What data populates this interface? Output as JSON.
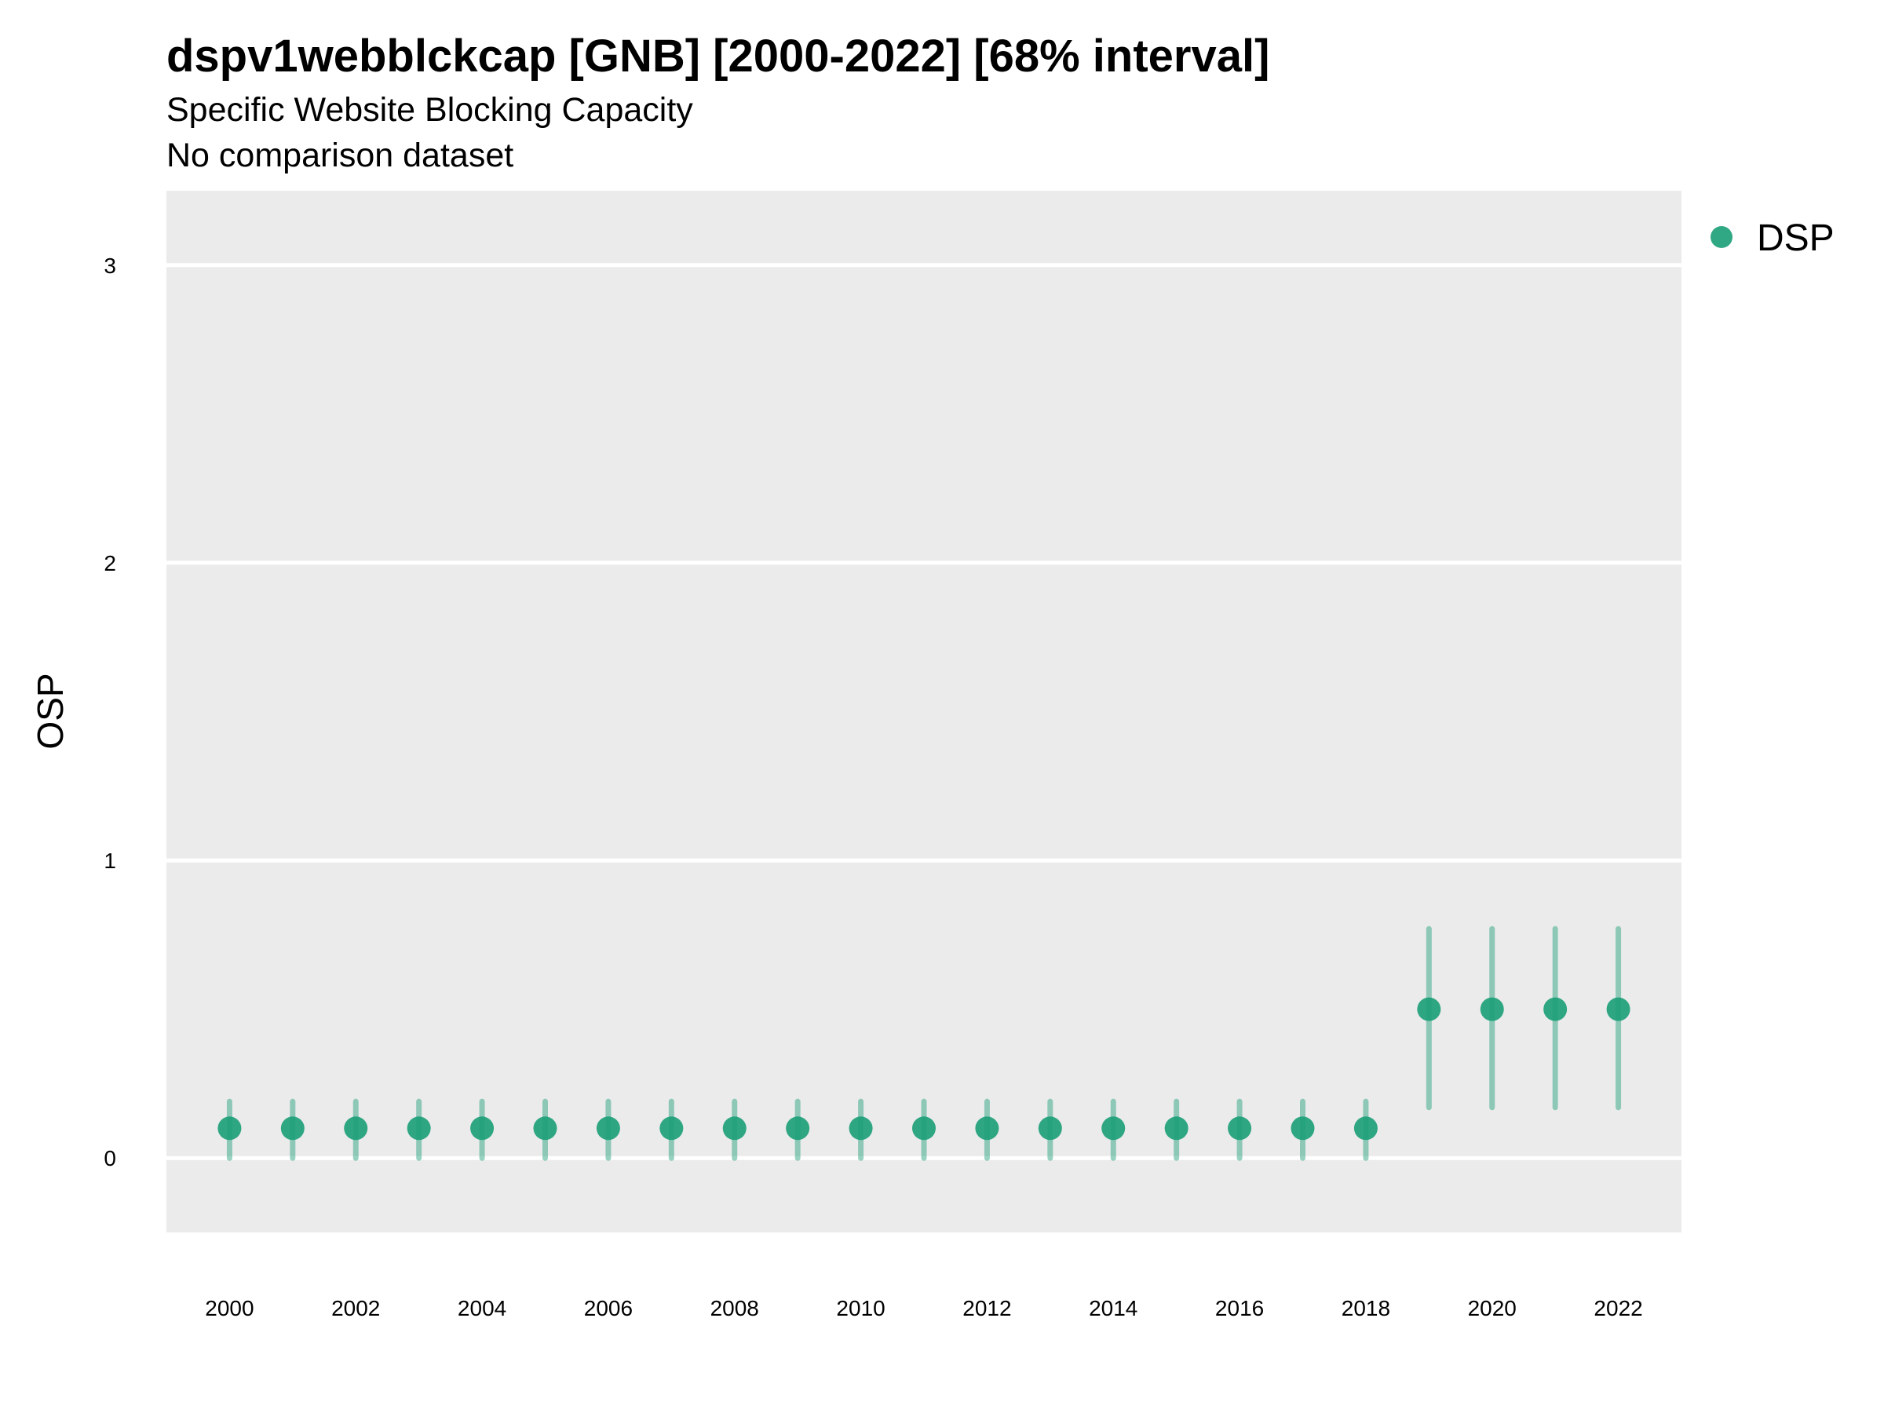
{
  "chart_data": {
    "type": "scatter",
    "title": "dspv1webblckcap [GNB] [2000-2022] [68% interval]",
    "subtitle": "Specific Website Blocking Capacity",
    "subtitle2": "No comparison dataset",
    "xlabel": "",
    "ylabel": "OSP",
    "ylim": [
      -0.25,
      3.25
    ],
    "xlim": [
      1999,
      2023
    ],
    "yticks": [
      "0",
      "1",
      "2",
      "3"
    ],
    "xticks": [
      "2000",
      "2002",
      "2004",
      "2006",
      "2008",
      "2010",
      "2012",
      "2014",
      "2016",
      "2018",
      "2020",
      "2022"
    ],
    "grid": true,
    "legend_position": "right",
    "series": [
      {
        "name": "DSP",
        "color": "#1b9e77",
        "x": [
          2000,
          2001,
          2002,
          2003,
          2004,
          2005,
          2006,
          2007,
          2008,
          2009,
          2010,
          2011,
          2012,
          2013,
          2014,
          2015,
          2016,
          2017,
          2018,
          2019,
          2020,
          2021,
          2022
        ],
        "y": [
          0.1,
          0.1,
          0.1,
          0.1,
          0.1,
          0.1,
          0.1,
          0.1,
          0.1,
          0.1,
          0.1,
          0.1,
          0.1,
          0.1,
          0.1,
          0.1,
          0.1,
          0.1,
          0.1,
          0.5,
          0.5,
          0.5,
          0.5
        ],
        "lower": [
          0.0,
          0.0,
          0.0,
          0.0,
          0.0,
          0.0,
          0.0,
          0.0,
          0.0,
          0.0,
          0.0,
          0.0,
          0.0,
          0.0,
          0.0,
          0.0,
          0.0,
          0.0,
          0.0,
          0.17,
          0.17,
          0.17,
          0.17
        ],
        "upper": [
          0.19,
          0.19,
          0.19,
          0.19,
          0.19,
          0.19,
          0.19,
          0.19,
          0.19,
          0.19,
          0.19,
          0.19,
          0.19,
          0.19,
          0.19,
          0.19,
          0.19,
          0.19,
          0.19,
          0.77,
          0.77,
          0.77,
          0.77
        ]
      }
    ]
  }
}
